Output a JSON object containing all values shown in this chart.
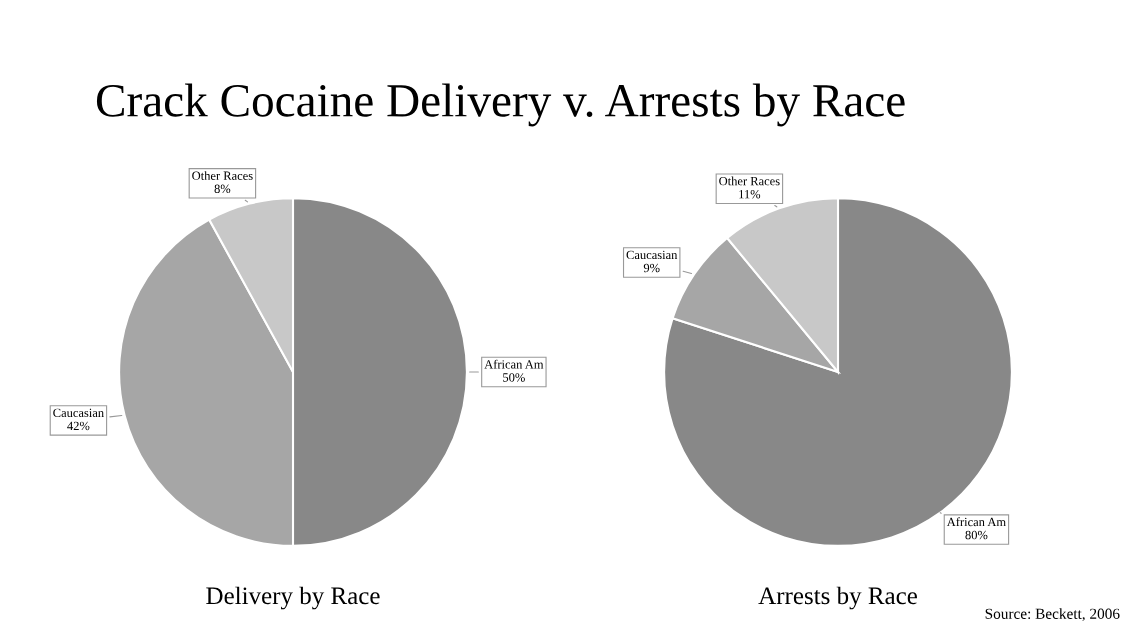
{
  "chart_data": [
    {
      "type": "pie",
      "title": "Crack Cocaine Delivery v. Arrests by Race",
      "xlabel": "Delivery by Race",
      "categories": [
        "African Am",
        "Caucasian",
        "Other Races"
      ],
      "values": [
        50,
        42,
        8
      ],
      "value_labels": [
        "50%",
        "42%",
        "8%"
      ],
      "colors": [
        "#888888",
        "#a6a6a6",
        "#c8c8c8"
      ]
    },
    {
      "type": "pie",
      "xlabel": "Arrests by Race",
      "annotations": [
        "Source: Beckett, 2006"
      ],
      "categories": [
        "African Am",
        "Caucasian",
        "Other Races"
      ],
      "values": [
        80,
        9,
        11
      ],
      "value_labels": [
        "80%",
        "9%",
        "11%"
      ],
      "colors": [
        "#888888",
        "#a6a6a6",
        "#c8c8c8"
      ]
    }
  ]
}
